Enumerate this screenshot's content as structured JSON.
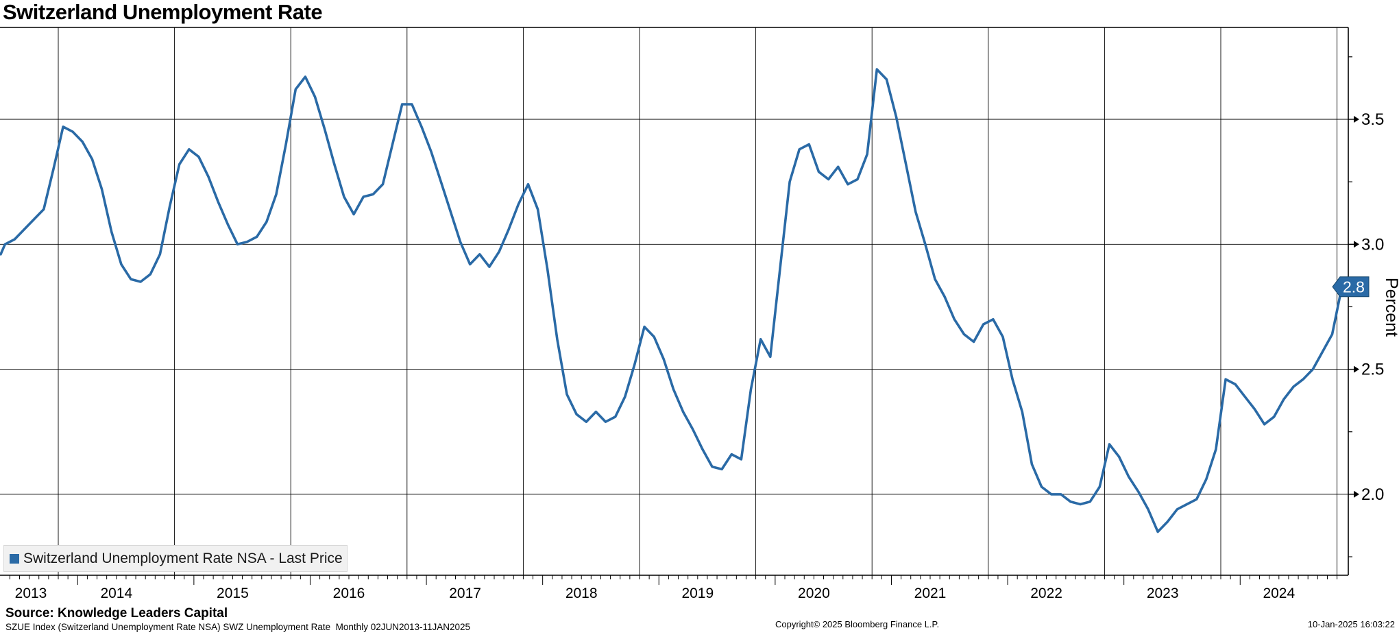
{
  "header": {
    "title": "Switzerland Unemployment Rate"
  },
  "legend": {
    "label": "Switzerland Unemployment Rate NSA - Last Price"
  },
  "footer": {
    "source": "Source: Knowledge Leaders Capital",
    "description": "SZUE Index (Switzerland Unemployment Rate NSA) SWZ Unemployment Rate  Monthly 02JUN2013-11JAN2025",
    "copyright": "Copyright© 2025 Bloomberg Finance L.P.",
    "timestamp": "10-Jan-2025 16:03:22"
  },
  "chart_data": {
    "type": "line",
    "title": "Switzerland Unemployment Rate",
    "series_name": "Switzerland Unemployment Rate NSA - Last Price",
    "ylabel": "Percent",
    "frequency": "monthly",
    "x_start": "Jun 2013",
    "x_end": "Jan 2025",
    "x_year_labels": [
      "2013",
      "2014",
      "2015",
      "2016",
      "2017",
      "2018",
      "2019",
      "2020",
      "2021",
      "2022",
      "2023",
      "2024"
    ],
    "yticks": [
      "3.5",
      "3.0",
      "2.5",
      "2.0"
    ],
    "y_minor_ticks": [
      3.75,
      3.25,
      2.75,
      2.25,
      1.75
    ],
    "ylim_top": 3.87,
    "ylim_bottom": 1.66,
    "grid": true,
    "legend_position": "bottom-left",
    "last_price": "2.8",
    "line_color": "#2a6aa6",
    "values": [
      2.96,
      3.0,
      3.02,
      3.06,
      3.1,
      3.14,
      3.3,
      3.47,
      3.45,
      3.41,
      3.34,
      3.22,
      3.05,
      2.92,
      2.86,
      2.85,
      2.88,
      2.96,
      3.15,
      3.32,
      3.38,
      3.35,
      3.27,
      3.17,
      3.08,
      3.0,
      3.01,
      3.03,
      3.09,
      3.2,
      3.4,
      3.62,
      3.67,
      3.59,
      3.46,
      3.32,
      3.19,
      3.12,
      3.19,
      3.2,
      3.24,
      3.4,
      3.56,
      3.56,
      3.47,
      3.37,
      3.25,
      3.13,
      3.01,
      2.92,
      2.96,
      2.91,
      2.97,
      3.06,
      3.16,
      3.24,
      3.14,
      2.9,
      2.62,
      2.4,
      2.32,
      2.29,
      2.33,
      2.29,
      2.31,
      2.39,
      2.52,
      2.67,
      2.63,
      2.54,
      2.42,
      2.33,
      2.26,
      2.18,
      2.11,
      2.1,
      2.16,
      2.14,
      2.42,
      2.62,
      2.55,
      2.9,
      3.25,
      3.38,
      3.4,
      3.29,
      3.26,
      3.31,
      3.24,
      3.26,
      3.36,
      3.7,
      3.66,
      3.51,
      3.32,
      3.13,
      3.0,
      2.86,
      2.79,
      2.7,
      2.64,
      2.61,
      2.68,
      2.7,
      2.63,
      2.46,
      2.33,
      2.12,
      2.03,
      2.0,
      2.0,
      1.97,
      1.96,
      1.97,
      2.03,
      2.2,
      2.15,
      2.07,
      2.01,
      1.94,
      1.85,
      1.89,
      1.94,
      1.96,
      1.98,
      2.06,
      2.18,
      2.46,
      2.44,
      2.39,
      2.34,
      2.28,
      2.31,
      2.38,
      2.43,
      2.46,
      2.5,
      2.57,
      2.64,
      2.83
    ]
  }
}
